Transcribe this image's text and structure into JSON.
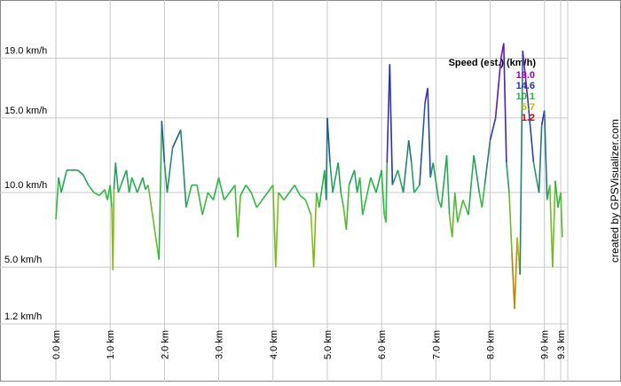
{
  "chart_data": {
    "type": "line",
    "watermark": "created by GPSVisualizer.com",
    "x": [
      0.0,
      0.05,
      0.1,
      0.2,
      0.4,
      0.5,
      0.6,
      0.7,
      0.8,
      0.9,
      0.95,
      1.0,
      1.03,
      1.05,
      1.07,
      1.1,
      1.15,
      1.2,
      1.3,
      1.35,
      1.4,
      1.5,
      1.6,
      1.65,
      1.7,
      1.9,
      1.95,
      2.0,
      2.05,
      2.15,
      2.3,
      2.4,
      2.5,
      2.6,
      2.7,
      2.8,
      2.9,
      3.0,
      3.1,
      3.2,
      3.3,
      3.35,
      3.4,
      3.5,
      3.6,
      3.7,
      3.8,
      3.9,
      4.0,
      4.05,
      4.1,
      4.2,
      4.3,
      4.4,
      4.5,
      4.6,
      4.7,
      4.75,
      4.8,
      4.85,
      4.95,
      4.98,
      5.0,
      5.05,
      5.1,
      5.2,
      5.25,
      5.3,
      5.35,
      5.4,
      5.5,
      5.55,
      5.6,
      5.65,
      5.8,
      5.9,
      6.0,
      6.05,
      6.08,
      6.1,
      6.15,
      6.2,
      6.3,
      6.4,
      6.5,
      6.55,
      6.6,
      6.7,
      6.8,
      6.85,
      6.9,
      6.95,
      7.05,
      7.1,
      7.2,
      7.25,
      7.3,
      7.35,
      7.4,
      7.5,
      7.6,
      7.7,
      7.8,
      7.85,
      7.9,
      8.0,
      8.1,
      8.2,
      8.25,
      8.3,
      8.35,
      8.4,
      8.45,
      8.5,
      8.55,
      8.6,
      8.7,
      8.8,
      8.9,
      8.95,
      9.0,
      9.05,
      9.1,
      9.15,
      9.2,
      9.25,
      9.3,
      9.33
    ],
    "values": [
      8.2,
      11.0,
      10.0,
      11.5,
      11.5,
      11.2,
      10.5,
      10.0,
      9.8,
      10.2,
      9.5,
      10.5,
      9.0,
      4.8,
      10.2,
      12.0,
      10.0,
      10.5,
      11.5,
      10.0,
      11.0,
      10.0,
      11.0,
      10.2,
      10.5,
      5.5,
      14.8,
      12.0,
      10.0,
      13.0,
      14.2,
      9.0,
      10.5,
      10.5,
      8.5,
      10.0,
      9.5,
      11.0,
      9.5,
      10.0,
      10.5,
      7.0,
      9.8,
      10.5,
      10.0,
      9.0,
      9.5,
      10.0,
      10.5,
      5.0,
      10.0,
      9.5,
      10.0,
      10.5,
      9.8,
      9.5,
      8.5,
      5.0,
      10.0,
      9.0,
      11.5,
      9.5,
      15.0,
      12.0,
      10.0,
      12.0,
      10.0,
      9.0,
      7.5,
      10.5,
      11.5,
      10.0,
      11.0,
      8.5,
      11.0,
      10.0,
      11.5,
      8.5,
      8.0,
      12.0,
      18.6,
      10.5,
      11.5,
      10.0,
      13.5,
      12.0,
      10.0,
      10.5,
      16.0,
      17.0,
      11.0,
      12.0,
      9.5,
      9.0,
      12.5,
      8.5,
      7.0,
      10.0,
      8.0,
      9.5,
      8.5,
      12.5,
      10.0,
      9.0,
      10.5,
      13.5,
      15.0,
      19.0,
      20.0,
      12.0,
      10.0,
      6.0,
      2.2,
      7.0,
      4.5,
      19.5,
      16.0,
      12.0,
      10.0,
      14.5,
      15.5,
      9.5,
      10.5,
      5.0,
      10.8,
      9.0,
      10.0,
      7.0
    ],
    "xlim": [
      0,
      9.43
    ],
    "ylim": [
      1.2,
      22.9
    ],
    "xticks": [
      {
        "value": 0,
        "label": "0.0 km"
      },
      {
        "value": 1,
        "label": "1.0 km"
      },
      {
        "value": 2,
        "label": "2.0 km"
      },
      {
        "value": 3,
        "label": "3.0 km"
      },
      {
        "value": 4,
        "label": "4.0 km"
      },
      {
        "value": 5,
        "label": "5.0 km"
      },
      {
        "value": 6,
        "label": "6.0 km"
      },
      {
        "value": 7,
        "label": "7.0 km"
      },
      {
        "value": 8,
        "label": "8.0 km"
      },
      {
        "value": 9,
        "label": "9.0 km"
      },
      {
        "value": 9.3,
        "label": "9.3 km"
      }
    ],
    "yticks": [
      {
        "value": 1.2,
        "label": "1.2 km/h"
      },
      {
        "value": 5,
        "label": "5.0 km/h"
      },
      {
        "value": 10,
        "label": "10.0 km/h"
      },
      {
        "value": 15,
        "label": "15.0 km/h"
      },
      {
        "value": 19,
        "label": "19.0 km/h"
      }
    ],
    "grid": true,
    "color_scale": {
      "title": "Speed (est.) (km/h)",
      "values": [
        19.0,
        14.6,
        10.1,
        5.7,
        1.2
      ],
      "value_labels": [
        "19.0",
        "14.6",
        "10.1",
        "5.7",
        "1.2"
      ],
      "colors": [
        "#9900cc",
        "#2233bb",
        "#22bb44",
        "#bbbb00",
        "#cc0000"
      ]
    }
  }
}
